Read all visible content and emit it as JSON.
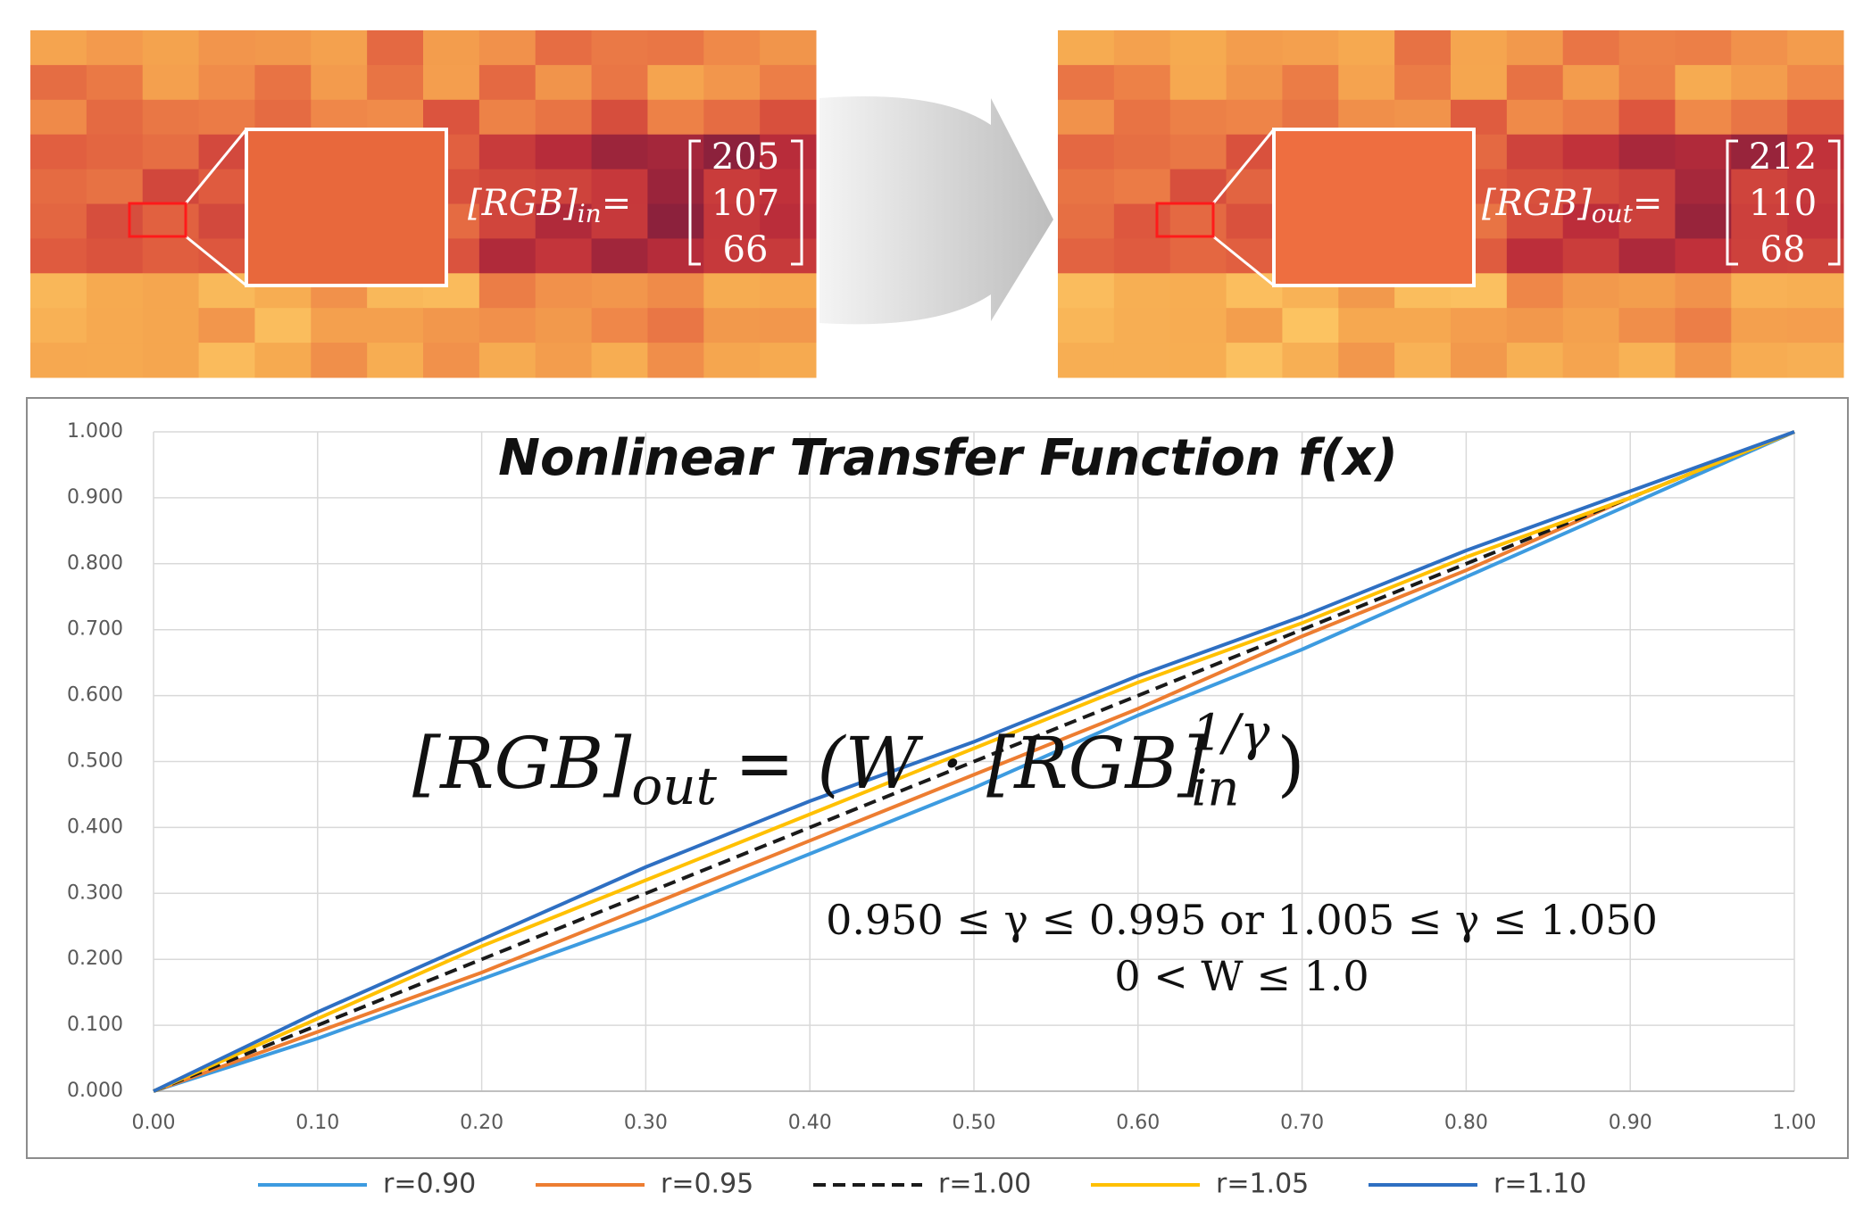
{
  "panels": [
    {
      "label": "[RGB]",
      "subscript": "in",
      "equals": "=",
      "values": [
        205,
        107,
        66
      ]
    },
    {
      "label": "[RGB]",
      "subscript": "out",
      "equals": "=",
      "values": [
        212,
        110,
        68
      ]
    }
  ],
  "chart_data": {
    "type": "line",
    "title": "Nonlinear Transfer Function f(x)",
    "x": [
      0,
      0.1,
      0.2,
      0.3,
      0.4,
      0.5,
      0.6,
      0.7,
      0.8,
      0.9,
      1.0
    ],
    "series": [
      {
        "name": "r=0.90",
        "color": "#3d9be0",
        "values": [
          0,
          0.08,
          0.17,
          0.26,
          0.36,
          0.46,
          0.57,
          0.67,
          0.78,
          0.89,
          1.0
        ]
      },
      {
        "name": "r=0.95",
        "color": "#ed7d31",
        "values": [
          0,
          0.09,
          0.18,
          0.28,
          0.38,
          0.48,
          0.58,
          0.69,
          0.79,
          0.9,
          1.0
        ]
      },
      {
        "name": "r=1.00",
        "color": "#1a1a1a",
        "dash": "dashed",
        "values": [
          0,
          0.1,
          0.2,
          0.3,
          0.4,
          0.5,
          0.6,
          0.7,
          0.8,
          0.9,
          1.0
        ]
      },
      {
        "name": "r=1.05",
        "color": "#ffc000",
        "values": [
          0,
          0.11,
          0.22,
          0.32,
          0.42,
          0.52,
          0.62,
          0.71,
          0.81,
          0.9,
          1.0
        ]
      },
      {
        "name": "r=1.10",
        "color": "#2e6fc2",
        "values": [
          0,
          0.12,
          0.23,
          0.34,
          0.44,
          0.53,
          0.63,
          0.72,
          0.82,
          0.91,
          1.0
        ]
      }
    ],
    "xlim": [
      0,
      1
    ],
    "ylim": [
      0,
      1
    ],
    "xticks": [
      {
        "value": 0,
        "label": "0.00"
      },
      {
        "value": 0.1,
        "label": "0.10"
      },
      {
        "value": 0.2,
        "label": "0.20"
      },
      {
        "value": 0.3,
        "label": "0.30"
      },
      {
        "value": 0.4,
        "label": "0.40"
      },
      {
        "value": 0.5,
        "label": "0.50"
      },
      {
        "value": 0.6,
        "label": "0.60"
      },
      {
        "value": 0.7,
        "label": "0.70"
      },
      {
        "value": 0.8,
        "label": "0.80"
      },
      {
        "value": 0.9,
        "label": "0.90"
      },
      {
        "value": 1,
        "label": "1.00"
      }
    ],
    "yticks": [
      {
        "value": 0,
        "label": "0.000"
      },
      {
        "value": 0.1,
        "label": "0.100"
      },
      {
        "value": 0.2,
        "label": "0.200"
      },
      {
        "value": 0.3,
        "label": "0.300"
      },
      {
        "value": 0.4,
        "label": "0.400"
      },
      {
        "value": 0.5,
        "label": "0.500"
      },
      {
        "value": 0.6,
        "label": "0.600"
      },
      {
        "value": 0.7,
        "label": "0.700"
      },
      {
        "value": 0.8,
        "label": "0.800"
      },
      {
        "value": 0.9,
        "label": "0.900"
      },
      {
        "value": 1,
        "label": "1.000"
      }
    ],
    "grid": true,
    "legend": "bottom",
    "formula": {
      "lhs": "[RGB]",
      "lhs_sub": "out",
      "rhs": "= (W · [RGB]",
      "rhs_sup": "1/γ",
      "rhs_sub": "in",
      "close": ")"
    },
    "constraints": [
      "0.950 ≤ γ ≤ 0.995 or 1.005 ≤ γ ≤ 1.050",
      "0 < W ≤ 1.0"
    ]
  }
}
